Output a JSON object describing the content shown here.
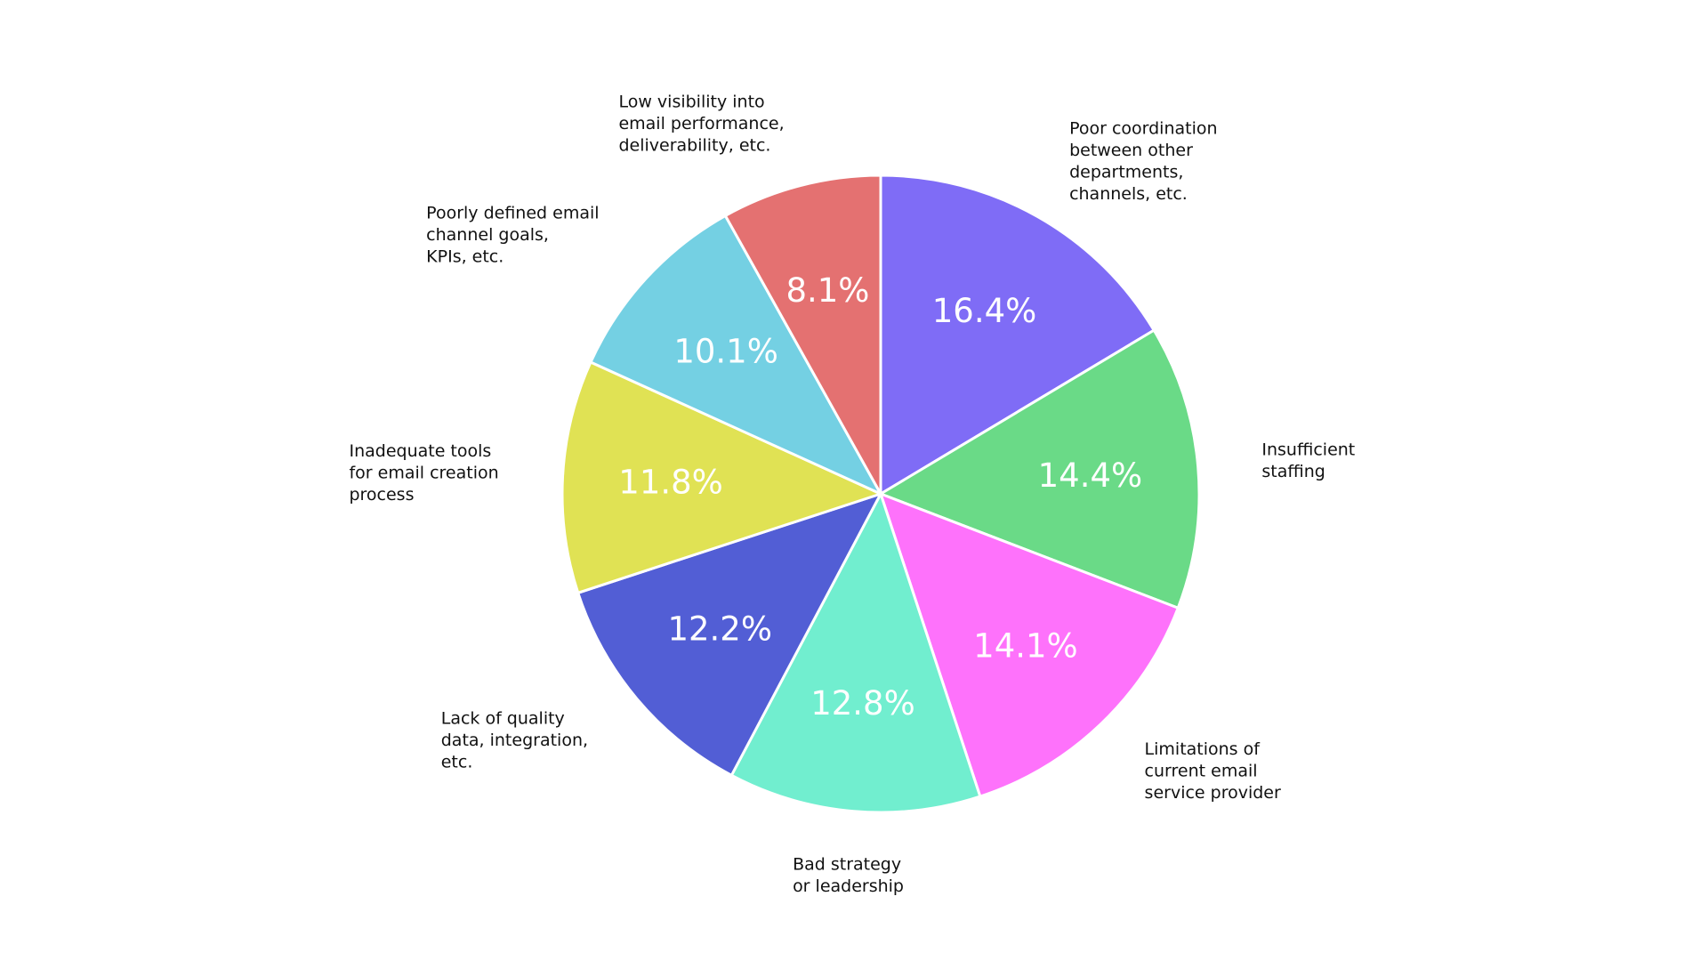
{
  "chart_data": {
    "type": "pie",
    "title": "",
    "start_angle_deg": 90,
    "direction": "clockwise",
    "slices": [
      {
        "label_lines": [
          "Poor coordination",
          "between other",
          "departments,",
          "channels, etc."
        ],
        "value": 16.4,
        "display": "16.4%",
        "color": "#7F6CF6"
      },
      {
        "label_lines": [
          "Insufficient",
          "staffing"
        ],
        "value": 14.4,
        "display": "14.4%",
        "color": "#6ADA87"
      },
      {
        "label_lines": [
          "Limitations of",
          "current email",
          "service provider"
        ],
        "value": 14.1,
        "display": "14.1%",
        "color": "#FE72FB"
      },
      {
        "label_lines": [
          "Bad strategy",
          "or leadership"
        ],
        "value": 12.8,
        "display": "12.8%",
        "color": "#71EECF"
      },
      {
        "label_lines": [
          "Lack of quality",
          "data, integration,",
          "etc."
        ],
        "value": 12.2,
        "display": "12.2%",
        "color": "#525ED5"
      },
      {
        "label_lines": [
          "Inadequate tools",
          "for email creation",
          "process"
        ],
        "value": 11.8,
        "display": "11.8%",
        "color": "#E0E254"
      },
      {
        "label_lines": [
          "Poorly defined email",
          "channel goals,",
          "KPIs, etc."
        ],
        "value": 10.1,
        "display": "10.1%",
        "color": "#74D0E3"
      },
      {
        "label_lines": [
          "Low visibility into",
          "email performance,",
          "deliverability, etc."
        ],
        "value": 8.1,
        "display": "8.1%",
        "color": "#E47171"
      }
    ]
  }
}
